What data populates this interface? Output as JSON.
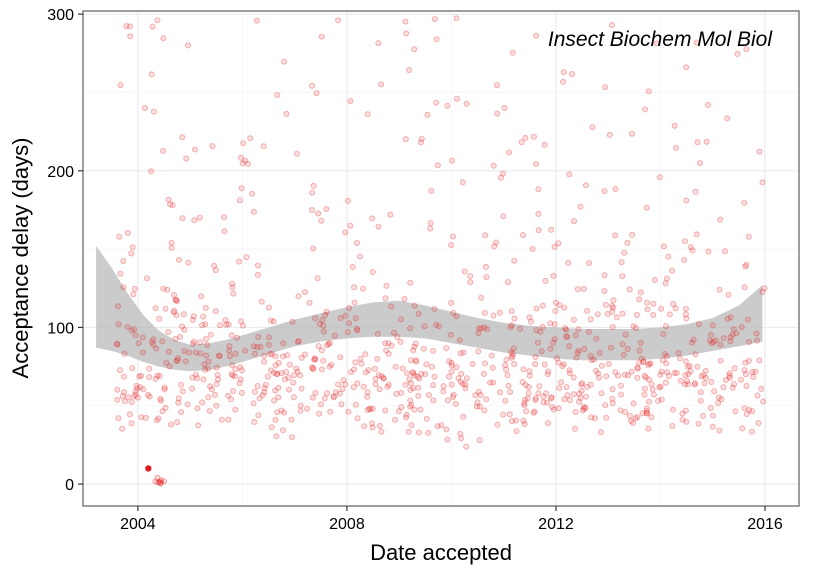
{
  "chart_data": {
    "type": "scatter",
    "annotation": "Insect Biochem Mol Biol",
    "xlabel": "Date accepted",
    "ylabel": "Acceptance delay (days)",
    "xlim": [
      2002.95,
      2016.65
    ],
    "ylim": [
      -14,
      302
    ],
    "x_ticks": [
      2004,
      2008,
      2012,
      2016
    ],
    "x_tick_labels": [
      "2004",
      "2008",
      "2012",
      "2016"
    ],
    "y_ticks": [
      0,
      100,
      200,
      300
    ],
    "y_tick_labels": [
      "0",
      "100",
      "200",
      "300"
    ],
    "grid": true,
    "point_color": "#e31a1c",
    "band_color": "#bebebe",
    "highlight_point": {
      "x": 2004.2,
      "y": 10
    },
    "smooth_band": {
      "x": [
        2003.2,
        2003.5,
        2003.8,
        2004.1,
        2004.4,
        2004.7,
        2005.0,
        2005.4,
        2005.8,
        2006.2,
        2006.6,
        2007.0,
        2007.5,
        2008.0,
        2008.5,
        2009.0,
        2009.5,
        2010.0,
        2010.5,
        2011.0,
        2011.5,
        2012.0,
        2012.5,
        2013.0,
        2013.5,
        2014.0,
        2014.5,
        2015.0,
        2015.5,
        2015.95
      ],
      "upper": [
        152,
        138,
        122,
        108,
        98,
        92,
        89,
        90,
        93,
        97,
        101,
        105,
        109,
        113,
        116,
        117,
        114,
        110,
        106,
        103,
        101,
        100,
        99,
        99,
        99,
        100,
        102,
        106,
        114,
        127
      ],
      "lower": [
        87,
        85,
        82,
        78,
        75,
        73,
        72,
        73,
        76,
        80,
        84,
        88,
        91,
        93,
        94,
        94,
        93,
        90,
        87,
        84,
        82,
        80,
        79,
        79,
        79,
        80,
        82,
        85,
        88,
        91
      ]
    }
  }
}
